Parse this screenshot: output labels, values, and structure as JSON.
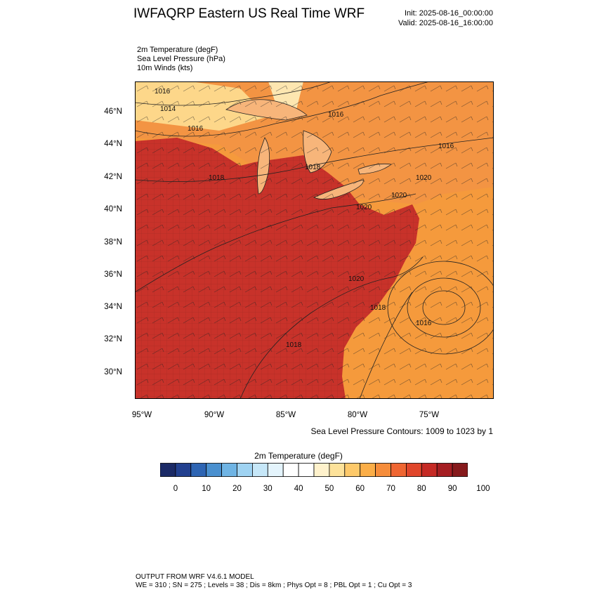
{
  "header": {
    "title": "IWFAQRP Eastern US Real Time WRF",
    "init": "Init: 2025-08-16_00:00:00",
    "valid": "Valid: 2025-08-16_16:00:00"
  },
  "fields": [
    "2m Temperature   (degF)",
    "Sea Level Pressure   (hPa)",
    "10m Winds   (kts)"
  ],
  "map": {
    "lat_labels": [
      "46°N",
      "44°N",
      "42°N",
      "40°N",
      "38°N",
      "36°N",
      "34°N",
      "32°N",
      "30°N"
    ],
    "lon_labels": [
      "95°W",
      "90°W",
      "85°W",
      "80°W",
      "75°W"
    ],
    "isobar_labels": [
      "1016",
      "1014",
      "1016",
      "1016",
      "1018",
      "1016",
      "1020",
      "1020",
      "1020",
      "1018",
      "1020",
      "1018",
      "1016",
      "1018"
    ],
    "contour_note": "Sea Level Pressure Contours: 1009 to 1023 by 1",
    "land_color": "#c8322a",
    "ocean_color": "#f59a3c"
  },
  "colorbar": {
    "title": "2m Temperature  (degF)",
    "ticks": [
      "0",
      "10",
      "20",
      "30",
      "40",
      "50",
      "60",
      "70",
      "80",
      "90",
      "100"
    ],
    "colors": [
      "#1b2a66",
      "#22408f",
      "#2e65b3",
      "#4a90cf",
      "#6fb4e4",
      "#9fd3f2",
      "#c6e7f8",
      "#e4f4fc",
      "#ffffff",
      "#ffffff",
      "#fff2cc",
      "#fde29a",
      "#fdc96a",
      "#fbae48",
      "#f68d3b",
      "#ef6632",
      "#e0462b",
      "#c52a25",
      "#a51e22",
      "#861a1c"
    ]
  },
  "footer": {
    "line1": "OUTPUT FROM WRF V4.6.1 MODEL",
    "line2": "WE = 310 ; SN = 275 ; Levels = 38 ; Dis = 8km ; Phys Opt = 8 ; PBL Opt = 1 ; Cu Opt = 3"
  }
}
